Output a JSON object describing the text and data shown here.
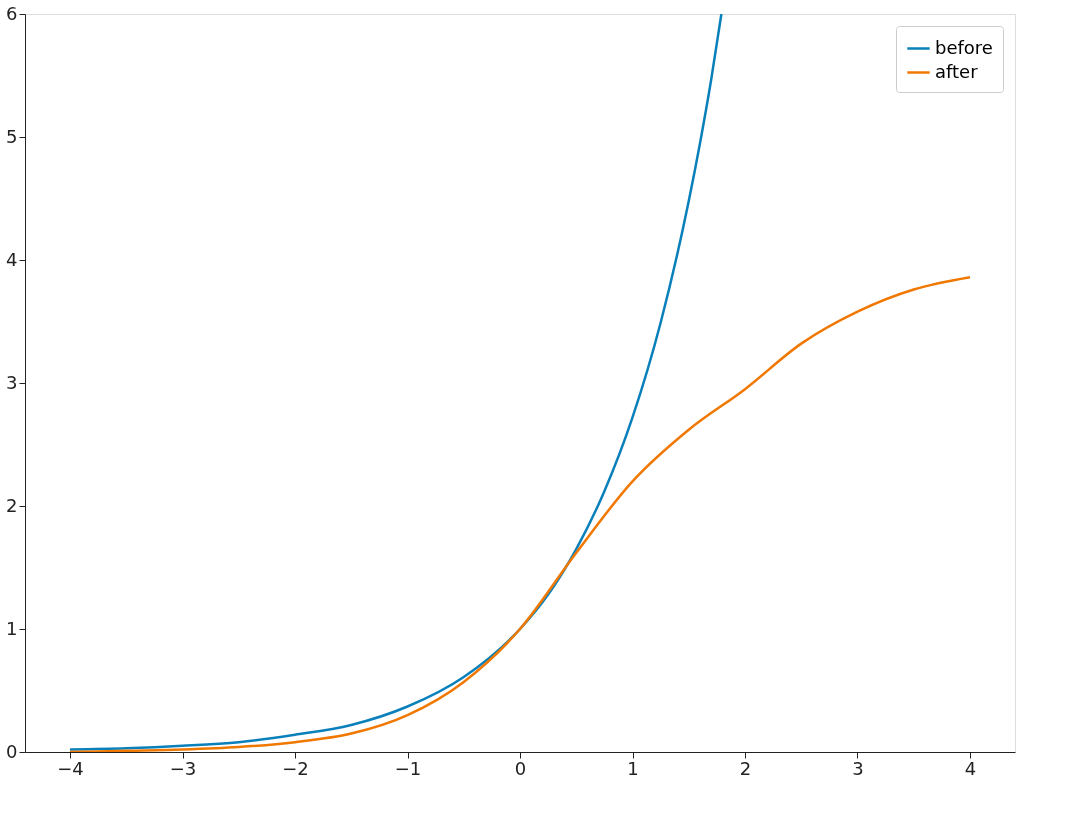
{
  "chart_data": {
    "type": "line",
    "xlim": [
      -4.4,
      4.4
    ],
    "ylim": [
      0,
      6
    ],
    "xticks": [
      -4,
      -3,
      -2,
      -1,
      0,
      1,
      2,
      3,
      4
    ],
    "yticks": [
      0,
      1,
      2,
      3,
      4,
      5,
      6
    ],
    "grid": false,
    "legend": "top right",
    "marker": "none",
    "line_style": "solid",
    "series": [
      {
        "name": "before",
        "color": "#0a80bb",
        "x": [
          -4,
          -3.5,
          -3,
          -2.5,
          -2,
          -1.5,
          -1,
          -0.5,
          0,
          0.25,
          0.5,
          0.75,
          1,
          1.25,
          1.5,
          1.6,
          1.7,
          1.79
        ],
        "values": [
          0.02,
          0.03,
          0.05,
          0.08,
          0.14,
          0.22,
          0.37,
          0.61,
          1.0,
          1.28,
          1.65,
          2.12,
          2.72,
          3.49,
          4.48,
          4.95,
          5.47,
          6.0
        ]
      },
      {
        "name": "after",
        "color": "#f07800",
        "x": [
          -4,
          -3.5,
          -3,
          -2.5,
          -2,
          -1.5,
          -1,
          -0.5,
          0,
          0.5,
          1,
          1.5,
          2,
          2.5,
          3,
          3.5,
          4
        ],
        "values": [
          0.0,
          0.01,
          0.02,
          0.04,
          0.08,
          0.15,
          0.3,
          0.57,
          1.0,
          1.62,
          2.2,
          2.62,
          2.95,
          3.32,
          3.58,
          3.76,
          3.86
        ]
      }
    ]
  }
}
